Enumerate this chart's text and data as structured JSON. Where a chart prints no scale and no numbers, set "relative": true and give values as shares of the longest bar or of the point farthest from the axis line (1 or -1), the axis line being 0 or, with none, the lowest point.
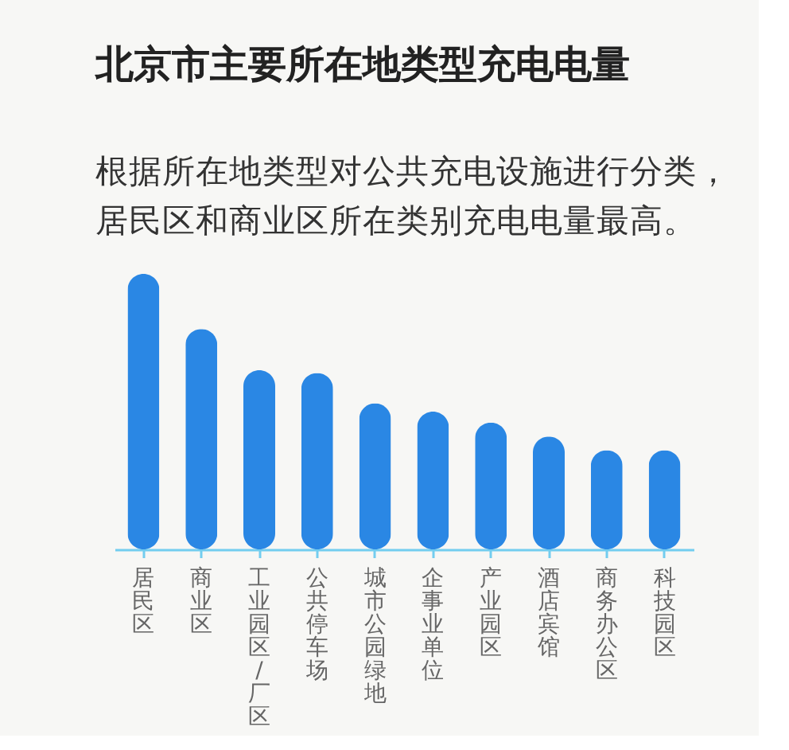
{
  "chart_data": {
    "type": "bar",
    "title": "北京市主要所在地类型充电电量",
    "subtitle": "根据所在地类型对公共充电设施进行分类，居民区和商业区所在类别充电电量最高。",
    "categories": [
      "居民区",
      "商业区",
      "工业园区/厂区",
      "公共停车场",
      "城市公园绿地",
      "企事业单位",
      "产业园区",
      "酒店宾馆",
      "商务办公区",
      "科技园区"
    ],
    "values": [
      1,
      0.8,
      0.65,
      0.64,
      0.53,
      0.5,
      0.46,
      0.41,
      0.36,
      0.36
    ],
    "color": "#2a87e4",
    "relative": true,
    "grid": false
  }
}
